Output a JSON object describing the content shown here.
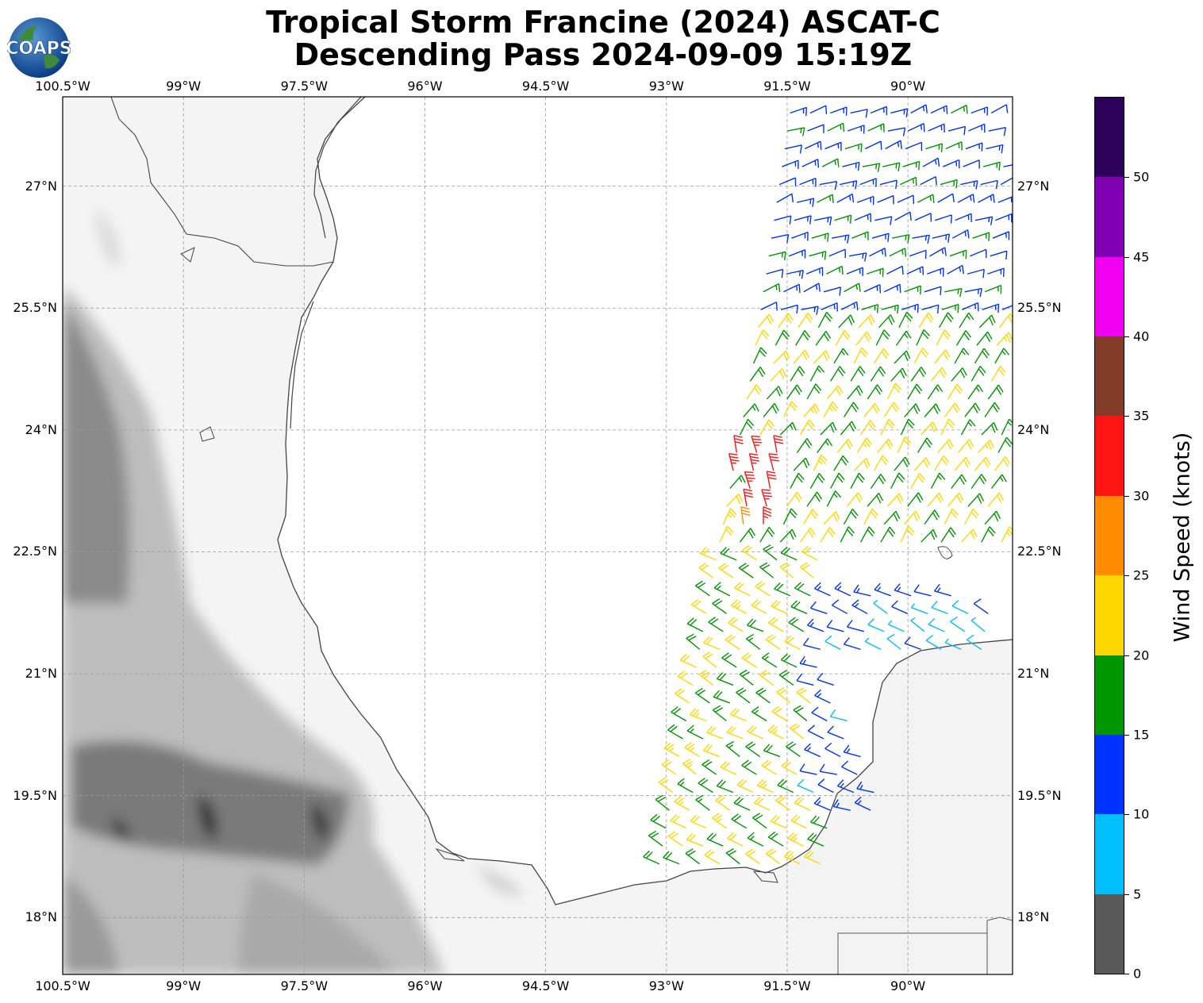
{
  "title_line1": "Tropical Storm Francine (2024) ASCAT-C",
  "title_line2": "Descending Pass 2024-09-09 15:19Z",
  "logo_text": "COAPS",
  "map": {
    "lon_min": -100.5,
    "lon_max": -88.7,
    "lat_min": 17.3,
    "lat_max": 28.1,
    "lon_ticks": [
      {
        "value": -100.5,
        "label": "100.5°W"
      },
      {
        "value": -99.0,
        "label": "99°W"
      },
      {
        "value": -97.5,
        "label": "97.5°W"
      },
      {
        "value": -96.0,
        "label": "96°W"
      },
      {
        "value": -94.5,
        "label": "94.5°W"
      },
      {
        "value": -93.0,
        "label": "93°W"
      },
      {
        "value": -91.5,
        "label": "91.5°W"
      },
      {
        "value": -90.0,
        "label": "90°W"
      }
    ],
    "lat_ticks": [
      {
        "value": 27.0,
        "label": "27°N"
      },
      {
        "value": 25.5,
        "label": "25.5°N"
      },
      {
        "value": 24.0,
        "label": "24°N"
      },
      {
        "value": 22.5,
        "label": "22.5°N"
      },
      {
        "value": 21.0,
        "label": "21°N"
      },
      {
        "value": 19.5,
        "label": "19.5°N"
      },
      {
        "value": 18.0,
        "label": "18°N"
      }
    ],
    "gridlines": true,
    "basemap": "grayscale terrain with coastline"
  },
  "colorbar": {
    "label": "Wind Speed (knots)",
    "ticks": [
      "0",
      "5",
      "10",
      "15",
      "20",
      "25",
      "30",
      "35",
      "40",
      "45",
      "50"
    ],
    "bins": [
      {
        "min": 0,
        "max": 5,
        "color": "#595959"
      },
      {
        "min": 5,
        "max": 10,
        "color": "#00bfff"
      },
      {
        "min": 10,
        "max": 15,
        "color": "#0032ff"
      },
      {
        "min": 15,
        "max": 20,
        "color": "#009600"
      },
      {
        "min": 20,
        "max": 25,
        "color": "#ffd700"
      },
      {
        "min": 25,
        "max": 30,
        "color": "#ff8c00"
      },
      {
        "min": 30,
        "max": 35,
        "color": "#ff1414"
      },
      {
        "min": 35,
        "max": 40,
        "color": "#823c28"
      },
      {
        "min": 40,
        "max": 45,
        "color": "#f000f0"
      },
      {
        "min": 45,
        "max": 50,
        "color": "#8200b4"
      },
      {
        "min": 50,
        "max": 55,
        "color": "#2d005a"
      }
    ]
  },
  "chart_data": {
    "type": "wind_barbs",
    "variable": "ASCAT-C wind vectors",
    "units": "knots",
    "regions": [
      {
        "name": "north swath",
        "lon_range": [
          -91.9,
          -88.8
        ],
        "lat_range": [
          25.0,
          27.9
        ],
        "speed_kt": 14,
        "dir_from_deg": 70
      },
      {
        "name": "central swath",
        "lon_range": [
          -92.5,
          -88.8
        ],
        "lat_range": [
          22.6,
          25.4
        ],
        "speed_kt": 20,
        "dir_from_deg": 35
      },
      {
        "name": "southwest swath",
        "lon_range": [
          -93.1,
          -91.0
        ],
        "lat_range": [
          18.6,
          22.6
        ],
        "speed_kt": 20,
        "dir_from_deg": 300
      },
      {
        "name": "southeast swath",
        "lon_range": [
          -91.2,
          -89.3
        ],
        "lat_range": [
          19.2,
          22.0
        ],
        "speed_kt": 12,
        "dir_from_deg": 290
      },
      {
        "name": "max wind core",
        "lon_range": [
          -92.2,
          -91.6
        ],
        "lat_range": [
          22.8,
          23.8
        ],
        "speed_kt": 32,
        "dir_from_deg": 350
      },
      {
        "name": "near Yucatan coast",
        "lon_range": [
          -90.4,
          -88.8
        ],
        "lat_range": [
          21.1,
          21.8
        ],
        "speed_kt": 8,
        "dir_from_deg": 300
      }
    ]
  }
}
